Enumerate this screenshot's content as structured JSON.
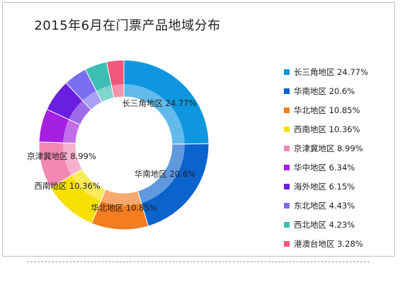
{
  "chart_data": {
    "type": "pie",
    "donut": true,
    "title": "2015年6月在门票产品地域分布",
    "legend_position": "right",
    "categories": [
      "长三角地区",
      "华南地区",
      "华北地区",
      "西南地区",
      "京津冀地区",
      "华中地区",
      "海外地区",
      "东北地区",
      "西北地区",
      "港澳台地区"
    ],
    "values": [
      24.77,
      20.6,
      10.85,
      10.36,
      8.99,
      6.34,
      6.15,
      4.43,
      4.23,
      3.28
    ],
    "value_labels": [
      "24.77%",
      "20.6%",
      "10.85%",
      "10.36%",
      "8.99%",
      "6.34%",
      "6.15%",
      "4.43%",
      "4.23%",
      "3.28%"
    ],
    "colors": [
      "#0f96e0",
      "#0b63cc",
      "#f57c1f",
      "#f7e000",
      "#f288b2",
      "#a51fe0",
      "#6a1ee0",
      "#7b6df2",
      "#3cbfb2",
      "#f0577a"
    ],
    "slice_labels": [
      {
        "text": "长三角地区 24.77%"
      },
      {
        "text": "华南地区 20.6%"
      },
      {
        "text": "华北地区  10.85%"
      },
      {
        "text": "西南地区 10.36%"
      },
      {
        "text": "京津冀地区 8.99%"
      }
    ],
    "legend_entries": [
      "长三角地区 24.77%",
      "华南地区 20.6%",
      "华北地区  10.85%",
      "西南地区 10.36%",
      "京津冀地区 8.99%",
      "华中地区 6.34%",
      "海外地区 6.15%",
      "东北地区 4.43%",
      "西北地区 4.23%",
      "港澳台地区 3.28%"
    ]
  }
}
